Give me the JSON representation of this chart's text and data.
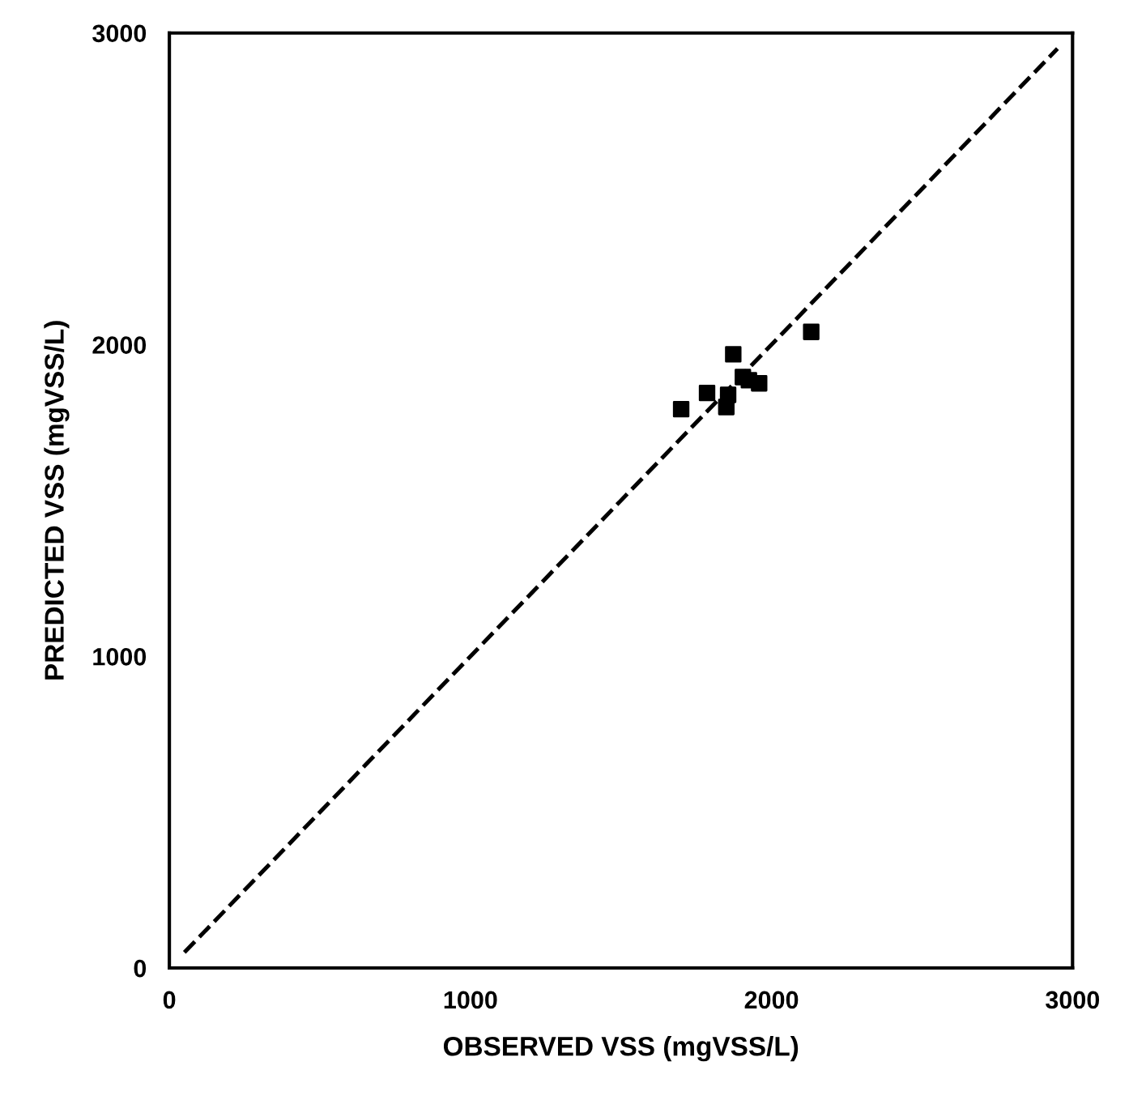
{
  "chart_data": {
    "type": "scatter",
    "xlabel": "OBSERVED VSS (mgVSS/L)",
    "ylabel": "PREDICTED VSS (mgVSS/L)",
    "series": [
      {
        "color": "#000000",
        "marker": "square",
        "x": [
          1700,
          1786,
          1873,
          1856,
          1850,
          1905,
          1925,
          1959,
          2132
        ],
        "values": [
          1793,
          1845,
          1969,
          1839,
          1800,
          1896,
          1886,
          1876,
          2041
        ]
      },
      {
        "type": "line",
        "color": "#000000",
        "line_style": "dashed",
        "x": [
          50,
          2950
        ],
        "values": [
          50,
          2950
        ]
      }
    ],
    "xlim": [
      0,
      3000
    ],
    "ylim": [
      0,
      3000
    ],
    "xticks": [
      0,
      1000,
      2000,
      3000
    ],
    "yticks": [
      0,
      1000,
      2000,
      3000
    ],
    "grid": false,
    "legend": false
  }
}
